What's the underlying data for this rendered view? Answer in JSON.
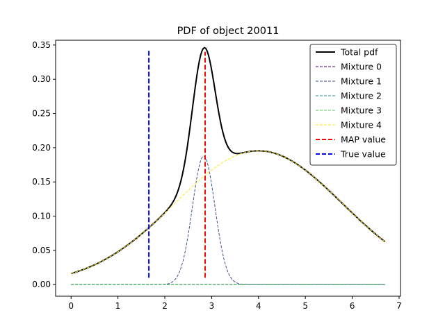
{
  "chart_data": {
    "type": "line",
    "title": "PDF of object 20011",
    "xlim": [
      -0.33,
      7.03
    ],
    "ylim": [
      -0.017,
      0.357
    ],
    "xticks": [
      0,
      1,
      2,
      3,
      4,
      5,
      6,
      7
    ],
    "yticks": [
      0.0,
      0.05,
      0.1,
      0.15,
      0.2,
      0.25,
      0.3,
      0.35
    ],
    "ytick_labels": [
      "0.00",
      "0.05",
      "0.10",
      "0.15",
      "0.20",
      "0.25",
      "0.30",
      "0.35"
    ],
    "legend_position": "upper right",
    "x_range": [
      0.0,
      6.7
    ],
    "components": [
      {
        "name": "Mixture 0",
        "color": "#440154",
        "weight": 0.0,
        "mean": 3.0,
        "sd": 1.0
      },
      {
        "name": "Mixture 1",
        "color": "#3b528b",
        "weight": 0.113,
        "mean": 2.83,
        "sd": 0.24
      },
      {
        "name": "Mixture 2",
        "color": "#21918c",
        "weight": 0.0,
        "mean": 3.0,
        "sd": 1.0
      },
      {
        "name": "Mixture 3",
        "color": "#5ec962",
        "weight": 0.0,
        "mean": 3.0,
        "sd": 1.0
      },
      {
        "name": "Mixture 4",
        "color": "#fde725",
        "weight": 0.877,
        "mean": 4.0,
        "sd": 1.79
      }
    ],
    "series": [
      {
        "name": "Total pdf",
        "color": "#000000",
        "style": "solid"
      },
      {
        "name": "Mixture 0",
        "color": "#440154",
        "style": "dashed"
      },
      {
        "name": "Mixture 1",
        "color": "#3b528b",
        "style": "dashed"
      },
      {
        "name": "Mixture 2",
        "color": "#21918c",
        "style": "dashed"
      },
      {
        "name": "Mixture 3",
        "color": "#5ec962",
        "style": "dashed"
      },
      {
        "name": "Mixture 4",
        "color": "#fde725",
        "style": "dashed"
      },
      {
        "name": "MAP value",
        "color": "#ff0000",
        "style": "dashed"
      },
      {
        "name": "True value",
        "color": "#0000ff",
        "style": "dashed"
      }
    ],
    "map_value": {
      "x": 2.86,
      "y_range": [
        0.01,
        0.34
      ]
    },
    "true_value": {
      "x": 1.66,
      "y_range": [
        0.01,
        0.342
      ]
    }
  }
}
